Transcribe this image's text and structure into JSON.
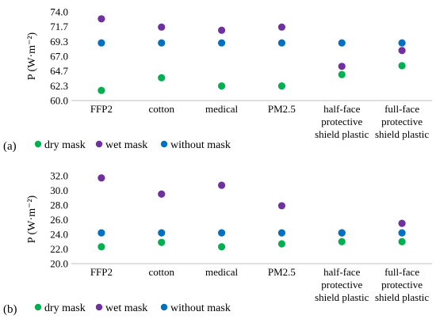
{
  "chart_data": [
    {
      "type": "scatter",
      "panel_label": "(a)",
      "ylabel": "P (W·m⁻²)",
      "ylim": [
        60.0,
        74.0
      ],
      "yticks": [
        "74.0",
        "71.7",
        "69.3",
        "67.0",
        "64.7",
        "62.3",
        "60.0"
      ],
      "categories": [
        "FFP2",
        "cotton",
        "medical",
        "PM2.5",
        "half-face protective shield plastic",
        "full-face protective shield plastic"
      ],
      "category_lines": [
        [
          "FFP2"
        ],
        [
          "cotton"
        ],
        [
          "medical"
        ],
        [
          "PM2.5"
        ],
        [
          "half-face",
          "protective",
          "shield plastic"
        ],
        [
          "full-face",
          "protective",
          "shield plastic"
        ]
      ],
      "grid": false,
      "legend_position": "bottom-left",
      "series": [
        {
          "name": "dry mask",
          "color": "#00b050",
          "values": [
            61.6,
            63.6,
            62.3,
            62.3,
            64.1,
            65.5
          ]
        },
        {
          "name": "wet mask",
          "color": "#7030a0",
          "values": [
            72.9,
            71.6,
            71.1,
            71.6,
            65.4,
            67.9
          ]
        },
        {
          "name": "without mask",
          "color": "#0070c0",
          "values": [
            69.1,
            69.1,
            69.1,
            69.1,
            69.1,
            69.1
          ]
        }
      ]
    },
    {
      "type": "scatter",
      "panel_label": "(b)",
      "ylabel": "P (W·m⁻²)",
      "ylim": [
        20.0,
        32.0
      ],
      "yticks": [
        "32.0",
        "30.0",
        "28.0",
        "26.0",
        "24.0",
        "22.0",
        "20.0"
      ],
      "categories": [
        "FFP2",
        "cotton",
        "medical",
        "PM2.5",
        "half-face protective shield plastic",
        "full-face protective shield plastic"
      ],
      "category_lines": [
        [
          "FFP2"
        ],
        [
          "cotton"
        ],
        [
          "medical"
        ],
        [
          "PM2.5"
        ],
        [
          "half-face",
          "protective",
          "shield plastic"
        ],
        [
          "full-face",
          "protective",
          "shield plastic"
        ]
      ],
      "grid": false,
      "legend_position": "bottom-left",
      "series": [
        {
          "name": "dry mask",
          "color": "#00b050",
          "values": [
            22.3,
            22.9,
            22.3,
            22.7,
            23.0,
            23.0
          ]
        },
        {
          "name": "wet mask",
          "color": "#7030a0",
          "values": [
            31.7,
            29.5,
            30.7,
            27.9,
            24.2,
            25.5
          ]
        },
        {
          "name": "without mask",
          "color": "#0070c0",
          "values": [
            24.2,
            24.2,
            24.2,
            24.2,
            24.2,
            24.2
          ]
        }
      ]
    }
  ]
}
